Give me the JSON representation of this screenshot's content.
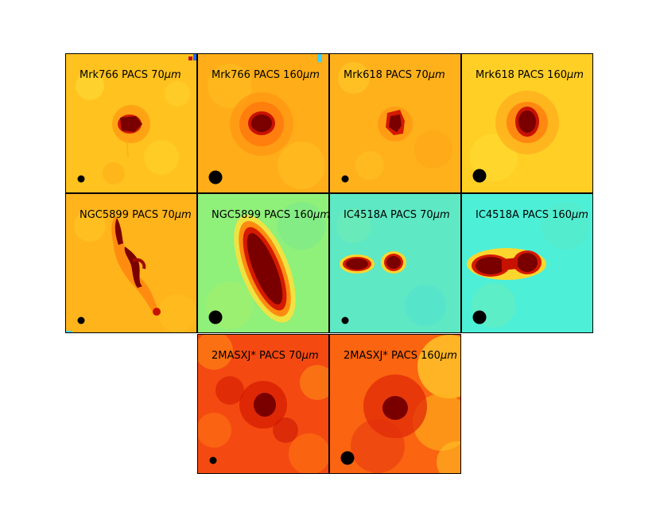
{
  "panels": [
    {
      "label": "Mrk766 PACS 70",
      "unit": "μm",
      "row": 0,
      "col": 0,
      "background": "#ffc21e",
      "beam": "small"
    },
    {
      "label": "Mrk766 PACS 160",
      "unit": "μm",
      "row": 0,
      "col": 1,
      "background": "#ffad18",
      "beam": "large"
    },
    {
      "label": "Mrk618 PACS 70",
      "unit": "μm",
      "row": 0,
      "col": 2,
      "background": "#ffb11c",
      "beam": "small"
    },
    {
      "label": "Mrk618 PACS 160",
      "unit": "μm",
      "row": 0,
      "col": 3,
      "background": "#ffcf26",
      "beam": "large"
    },
    {
      "label": "NGC5899 PACS 70",
      "unit": "μm",
      "row": 1,
      "col": 0,
      "background": "#ffb41c",
      "beam": "small"
    },
    {
      "label": "NGC5899 PACS 160",
      "unit": "μm",
      "row": 1,
      "col": 1,
      "background": "#8ff07a",
      "beam": "large"
    },
    {
      "label": "IC4518A PACS 70",
      "unit": "μm",
      "row": 1,
      "col": 2,
      "background": "#5ee8c4",
      "beam": "small"
    },
    {
      "label": "IC4518A PACS 160",
      "unit": "μm",
      "row": 1,
      "col": 3,
      "background": "#4df0d6",
      "beam": "large"
    },
    {
      "label": "2MASXJ* PACS 70",
      "unit": "μm",
      "row": 2,
      "col": 1,
      "background": "#f44a12",
      "beam": "small"
    },
    {
      "label": "2MASXJ* PACS 160",
      "unit": "μm",
      "row": 2,
      "col": 2,
      "background": "#fb6410",
      "beam": "large"
    }
  ],
  "colors": {
    "source_core": "#7a0000",
    "source_mid": "#d41a00",
    "source_halo": "#ff5a00",
    "frame": "#000000",
    "beam": "#000000"
  }
}
